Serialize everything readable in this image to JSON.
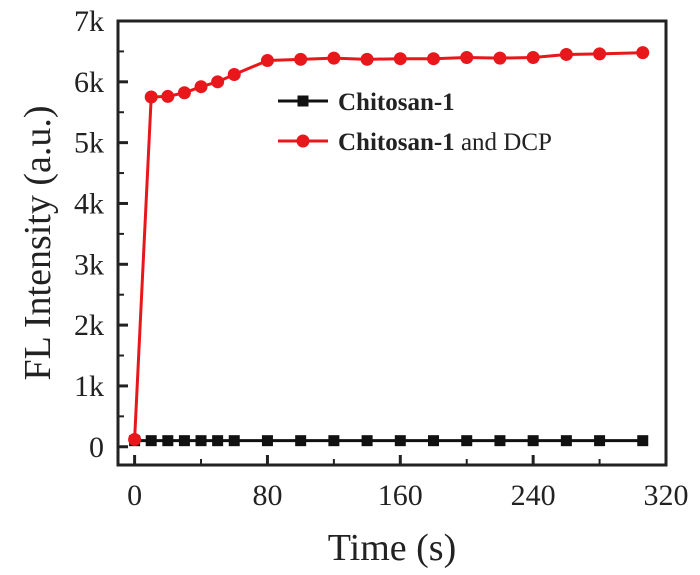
{
  "chart_data": {
    "type": "line",
    "xlabel": "Time (s)",
    "ylabel": "FL Intensity (a.u.)",
    "xlim": [
      -10,
      320
    ],
    "ylim": [
      -300,
      7000
    ],
    "xticks": [
      0,
      80,
      160,
      240,
      320
    ],
    "xtick_labels": [
      "0",
      "80",
      "160",
      "240",
      "320"
    ],
    "yticks": [
      0,
      1000,
      2000,
      3000,
      4000,
      5000,
      6000,
      7000
    ],
    "ytick_labels": [
      "0",
      "1k",
      "2k",
      "3k",
      "4k",
      "5k",
      "6k",
      "7k"
    ],
    "grid": false,
    "legend_position": "upper-right",
    "series": [
      {
        "name": "Chitosan-1",
        "legend_bold": "Chitosan-1",
        "legend_rest": "",
        "color": "#111111",
        "marker": "square",
        "x": [
          0,
          10,
          20,
          30,
          40,
          50,
          60,
          80,
          100,
          120,
          140,
          160,
          180,
          200,
          220,
          240,
          260,
          280,
          306
        ],
        "y": [
          100,
          100,
          100,
          100,
          100,
          100,
          100,
          100,
          100,
          100,
          100,
          100,
          100,
          100,
          100,
          100,
          100,
          100,
          100
        ]
      },
      {
        "name": "Chitosan-1 and DCP",
        "legend_bold": "Chitosan-1",
        "legend_rest": " and DCP",
        "color": "#e8171b",
        "marker": "circle",
        "x": [
          0,
          10,
          20,
          30,
          40,
          50,
          60,
          80,
          100,
          120,
          140,
          160,
          180,
          200,
          220,
          240,
          260,
          280,
          306
        ],
        "y": [
          120,
          5750,
          5760,
          5820,
          5920,
          6000,
          6120,
          6350,
          6370,
          6390,
          6370,
          6380,
          6380,
          6400,
          6390,
          6400,
          6450,
          6460,
          6480
        ]
      }
    ]
  }
}
